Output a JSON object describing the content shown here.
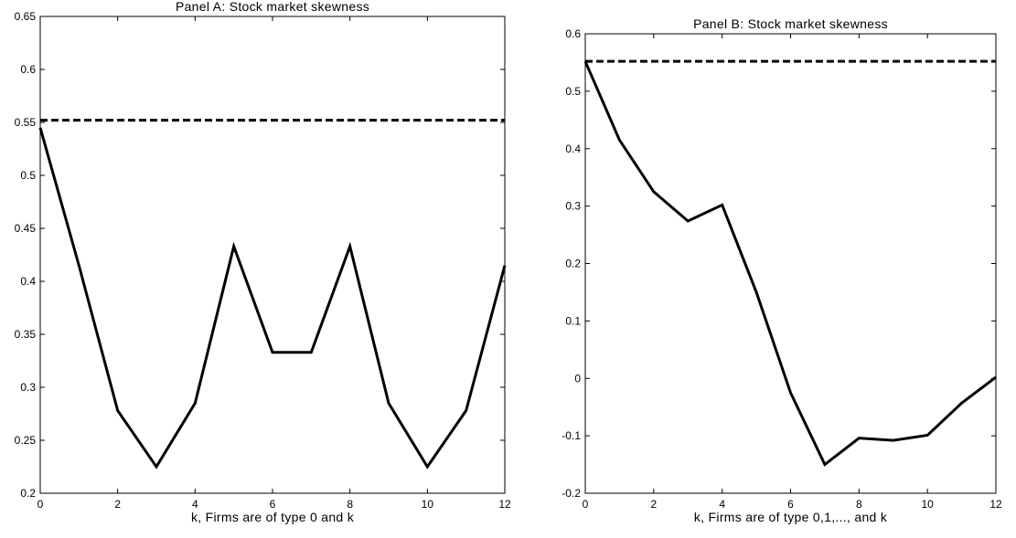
{
  "chart_data": [
    {
      "type": "line",
      "title": "Panel A: Stock market skewness",
      "xlabel": "k, Firms are of type 0 and k",
      "ylabel": "",
      "xlim": [
        0,
        12
      ],
      "ylim": [
        0.2,
        0.65
      ],
      "xticks": [
        0,
        2,
        4,
        6,
        8,
        10,
        12
      ],
      "yticks": [
        0.2,
        0.25,
        0.3,
        0.35,
        0.4,
        0.45,
        0.5,
        0.55,
        0.6,
        0.65
      ],
      "xtick_labels": [
        "0",
        "2",
        "4",
        "6",
        "8",
        "10",
        "12"
      ],
      "ytick_labels": [
        "0.2",
        "0.25",
        "0.3",
        "0.35",
        "0.4",
        "0.45",
        "0.5",
        "0.55",
        "0.6",
        "0.65"
      ],
      "grid": false,
      "series": [
        {
          "style": "solid",
          "color": "#000000",
          "x": [
            0,
            1,
            2,
            3,
            4,
            5,
            6,
            7,
            8,
            9,
            10,
            11,
            12
          ],
          "y": [
            0.545,
            0.415,
            0.278,
            0.225,
            0.285,
            0.433,
            0.333,
            0.333,
            0.433,
            0.285,
            0.225,
            0.278,
            0.415
          ]
        },
        {
          "style": "dashed",
          "color": "#000000",
          "x": [
            0,
            12
          ],
          "y": [
            0.552,
            0.552
          ]
        }
      ]
    },
    {
      "type": "line",
      "title": "Panel B: Stock market skewness",
      "xlabel": "k, Firms are of type 0,1,..., and k",
      "ylabel": "",
      "xlim": [
        0,
        12
      ],
      "ylim": [
        -0.2,
        0.6
      ],
      "xticks": [
        0,
        2,
        4,
        6,
        8,
        10,
        12
      ],
      "yticks": [
        -0.2,
        -0.1,
        0,
        0.1,
        0.2,
        0.3,
        0.4,
        0.5,
        0.6
      ],
      "xtick_labels": [
        "0",
        "2",
        "4",
        "6",
        "8",
        "10",
        "12"
      ],
      "ytick_labels": [
        "-0.2",
        "-0.1",
        "0",
        "0.1",
        "0.2",
        "0.3",
        "0.4",
        "0.5",
        "0.6"
      ],
      "grid": false,
      "series": [
        {
          "style": "solid",
          "color": "#000000",
          "x": [
            0,
            1,
            2,
            3,
            4,
            5,
            6,
            7,
            8,
            9,
            10,
            11,
            12
          ],
          "y": [
            0.552,
            0.415,
            0.325,
            0.274,
            0.302,
            0.15,
            -0.025,
            -0.15,
            -0.104,
            -0.108,
            -0.099,
            -0.043,
            0.002
          ]
        },
        {
          "style": "dashed",
          "color": "#000000",
          "x": [
            0,
            12
          ],
          "y": [
            0.552,
            0.552
          ]
        }
      ]
    }
  ]
}
